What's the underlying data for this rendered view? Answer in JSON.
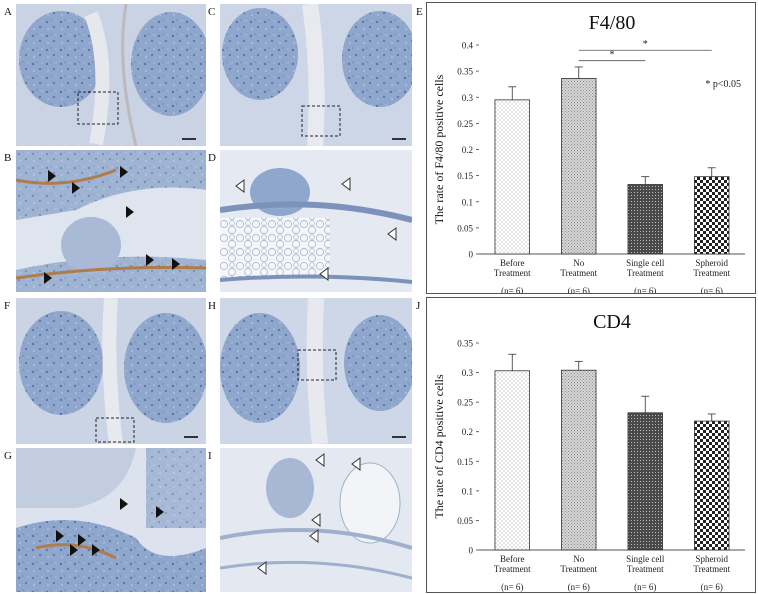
{
  "figure": {
    "panel_labels": {
      "A": "A",
      "B": "B",
      "C": "C",
      "D": "D",
      "E": "E",
      "F": "F",
      "G": "G",
      "H": "H",
      "I": "I",
      "J": "J"
    }
  },
  "charts": [
    {
      "type": "bar",
      "title": "F4/80",
      "ylabel": "The rate of F4/80 positive cells",
      "ylim": [
        0,
        0.4
      ],
      "yticks": [
        "0",
        "0.05",
        "0.1",
        "0.15",
        "0.2",
        "0.25",
        "0.3",
        "0.35",
        "0.4"
      ],
      "categories": [
        {
          "line1": "Before",
          "line2": "Treatment",
          "n": "(n= 6)"
        },
        {
          "line1": "No",
          "line2": "Treatment",
          "n": "(n= 6)"
        },
        {
          "line1": "Single cell",
          "line2": "Treatment",
          "n": "(n= 6)"
        },
        {
          "line1": "Spheroid",
          "line2": "Treatment",
          "n": "(n= 6)"
        }
      ],
      "values": [
        0.295,
        0.336,
        0.133,
        0.148
      ],
      "errors": [
        0.025,
        0.022,
        0.015,
        0.017
      ],
      "significance": [
        {
          "from": 1,
          "to": 3,
          "y": 0.39,
          "label": "*"
        },
        {
          "from": 1,
          "to": 2,
          "y": 0.37,
          "label": "*"
        }
      ],
      "note": "* p<0.05"
    },
    {
      "type": "bar",
      "title": "CD4",
      "ylabel": "The rate of CD4 positive cells",
      "ylim": [
        0,
        0.35
      ],
      "yticks": [
        "0",
        "0.05",
        "0.1",
        "0.15",
        "0.2",
        "0.25",
        "0.3",
        "0.35"
      ],
      "categories": [
        {
          "line1": "Before",
          "line2": "Treatment",
          "n": "(n= 6)"
        },
        {
          "line1": "No",
          "line2": "Treatment",
          "n": "(n= 6)"
        },
        {
          "line1": "Single cell",
          "line2": "Treatment",
          "n": "(n= 6)"
        },
        {
          "line1": "Spheroid",
          "line2": "Treatment",
          "n": "(n= 6)"
        }
      ],
      "values": [
        0.303,
        0.304,
        0.232,
        0.218
      ],
      "errors": [
        0.028,
        0.015,
        0.028,
        0.012
      ],
      "significance": [],
      "note": ""
    }
  ],
  "chart_data": [
    {
      "type": "bar",
      "title": "F4/80",
      "ylabel": "The rate of F4/80 positive cells",
      "categories": [
        "Before Treatment",
        "No Treatment",
        "Single cell Treatment",
        "Spheroid Treatment"
      ],
      "values": [
        0.295,
        0.336,
        0.133,
        0.148
      ],
      "ylim": [
        0,
        0.4
      ]
    },
    {
      "type": "bar",
      "title": "CD4",
      "ylabel": "The rate of CD4 positive cells",
      "categories": [
        "Before Treatment",
        "No Treatment",
        "Single cell Treatment",
        "Spheroid Treatment"
      ],
      "values": [
        0.303,
        0.304,
        0.232,
        0.218
      ],
      "ylim": [
        0,
        0.35
      ]
    }
  ]
}
